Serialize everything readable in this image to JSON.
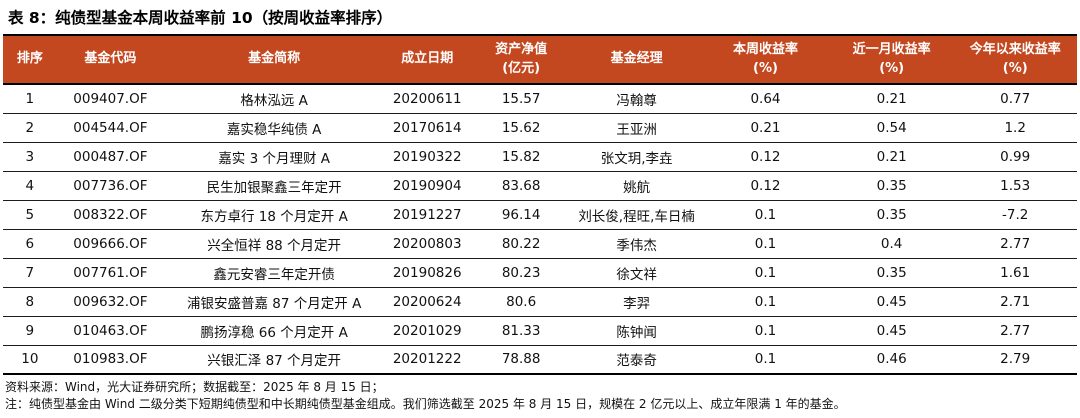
{
  "title": "表 8：纯债型基金本周收益率前 10（按周收益率排序）",
  "colors": {
    "header_bg": "#C3471F",
    "header_text": "#FFFFFF",
    "border": "#000000"
  },
  "table": {
    "columns": [
      {
        "key": "rank",
        "label": "排序"
      },
      {
        "key": "code",
        "label": "基金代码"
      },
      {
        "key": "name",
        "label": "基金简称"
      },
      {
        "key": "date",
        "label": "成立日期"
      },
      {
        "key": "nav",
        "label": "资产净值\n(亿元)"
      },
      {
        "key": "manager",
        "label": "基金经理"
      },
      {
        "key": "week",
        "label": "本周收益率\n(%)"
      },
      {
        "key": "month",
        "label": "近一月收益率\n(%)"
      },
      {
        "key": "ytd",
        "label": "今年以来收益率\n(%)"
      }
    ],
    "rows": [
      [
        "1",
        "009407.OF",
        "格林泓远 A",
        "20200611",
        "15.57",
        "冯翰尊",
        "0.64",
        "0.21",
        "0.77"
      ],
      [
        "2",
        "004544.OF",
        "嘉实稳华纯债 A",
        "20170614",
        "15.62",
        "王亚洲",
        "0.21",
        "0.54",
        "1.2"
      ],
      [
        "3",
        "000487.OF",
        "嘉实 3 个月理财 A",
        "20190322",
        "15.82",
        "张文玥,李垚",
        "0.12",
        "0.21",
        "0.99"
      ],
      [
        "4",
        "007736.OF",
        "民生加银聚鑫三年定开",
        "20190904",
        "83.68",
        "姚航",
        "0.12",
        "0.35",
        "1.53"
      ],
      [
        "5",
        "008322.OF",
        "东方卓行 18 个月定开 A",
        "20191227",
        "96.14",
        "刘长俊,程旺,车日楠",
        "0.1",
        "0.35",
        "-7.2"
      ],
      [
        "6",
        "009666.OF",
        "兴全恒祥 88 个月定开",
        "20200803",
        "80.22",
        "季伟杰",
        "0.1",
        "0.4",
        "2.77"
      ],
      [
        "7",
        "007761.OF",
        "鑫元安睿三年定开债",
        "20190826",
        "80.23",
        "徐文祥",
        "0.1",
        "0.35",
        "1.61"
      ],
      [
        "8",
        "009632.OF",
        "浦银安盛普嘉 87 个月定开 A",
        "20200624",
        "80.6",
        "李羿",
        "0.1",
        "0.45",
        "2.71"
      ],
      [
        "9",
        "010463.OF",
        "鹏扬淳稳 66 个月定开 A",
        "20201029",
        "81.33",
        "陈钟闻",
        "0.1",
        "0.45",
        "2.77"
      ],
      [
        "10",
        "010983.OF",
        "兴银汇泽 87 个月定开",
        "20201222",
        "78.88",
        "范泰奇",
        "0.1",
        "0.46",
        "2.79"
      ]
    ]
  },
  "footer": {
    "source": "资料来源：Wind，光大证券研究所；数据截至：2025 年 8 月 15 日；",
    "note": "注：纯债型基金由 Wind 二级分类下短期纯债型和中长期纯债型基金组成。我们筛选截至 2025 年 8 月 15 日，规模在 2 亿元以上、成立年限满 1 年的基金。"
  }
}
